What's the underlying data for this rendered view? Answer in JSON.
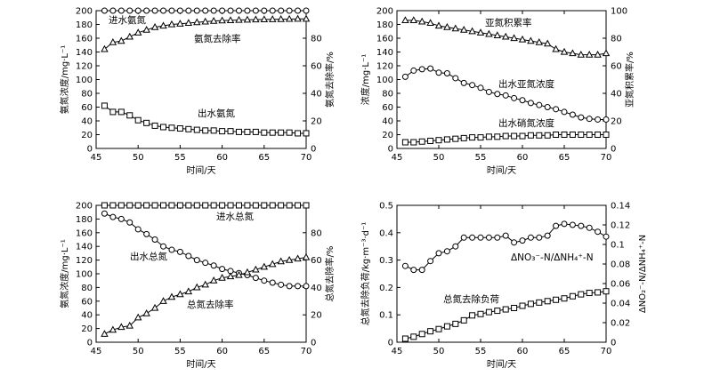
{
  "chart_data": [
    {
      "type": "line",
      "xlabel": "时间/天",
      "ylabel": "氨氮浓度/mg·L⁻¹",
      "y2label": "氨氮去除率/%",
      "xlim": [
        45,
        70
      ],
      "ylim": [
        0,
        200
      ],
      "y2lim": [
        0,
        100
      ],
      "xticks": [
        45,
        50,
        55,
        60,
        65,
        70
      ],
      "yticks": [
        0,
        20,
        40,
        60,
        80,
        100,
        120,
        140,
        160,
        180,
        200
      ],
      "y2ticks": [
        0,
        20,
        40,
        60,
        80
      ],
      "annotations": [
        "进水氨氮",
        "氨氮去除率",
        "出水氨氮"
      ],
      "series": [
        {
          "axis": "left",
          "marker": "circle",
          "x": [
            46,
            47,
            48,
            49,
            50,
            51,
            52,
            53,
            54,
            55,
            56,
            57,
            58,
            59,
            60,
            61,
            62,
            63,
            64,
            65,
            66,
            67,
            68,
            69,
            70
          ],
          "values": [
            200,
            200,
            200,
            200,
            200,
            200,
            200,
            200,
            200,
            200,
            200,
            200,
            200,
            200,
            200,
            200,
            200,
            200,
            200,
            200,
            200,
            200,
            200,
            200,
            200
          ]
        },
        {
          "axis": "right",
          "marker": "triangle",
          "x": [
            46,
            47,
            48,
            49,
            50,
            51,
            52,
            53,
            54,
            55,
            56,
            57,
            58,
            59,
            60,
            61,
            62,
            63,
            64,
            65,
            66,
            67,
            68,
            69,
            70
          ],
          "values": [
            72,
            77,
            78,
            81,
            84,
            86,
            88,
            89,
            90,
            90.5,
            91,
            91.5,
            92,
            92.5,
            92.8,
            93,
            93.2,
            93.4,
            93.5,
            93.6,
            93.7,
            93.8,
            93.9,
            94,
            94
          ]
        },
        {
          "axis": "left",
          "marker": "square",
          "x": [
            46,
            47,
            48,
            49,
            50,
            51,
            52,
            53,
            54,
            55,
            56,
            57,
            58,
            59,
            60,
            61,
            62,
            63,
            64,
            65,
            66,
            67,
            68,
            69,
            70
          ],
          "values": [
            62,
            53,
            53,
            48,
            41,
            37,
            33,
            31,
            30,
            29,
            28,
            27,
            26,
            26,
            25,
            25,
            24,
            24,
            24,
            23,
            23,
            23,
            23,
            22,
            22
          ]
        }
      ]
    },
    {
      "type": "line",
      "xlabel": "时间/天",
      "ylabel": "浓度/mg·L⁻¹",
      "y2label": "亚氮积累率/%",
      "xlim": [
        45,
        70
      ],
      "ylim": [
        0,
        200
      ],
      "y2lim": [
        0,
        100
      ],
      "xticks": [
        45,
        50,
        55,
        60,
        65,
        70
      ],
      "yticks": [
        0,
        20,
        40,
        60,
        80,
        100,
        120,
        140,
        160,
        180,
        200
      ],
      "y2ticks": [
        0,
        20,
        40,
        60,
        80,
        100
      ],
      "annotations": [
        "亚氮积累率",
        "出水亚氮浓度",
        "出水硝氮浓度"
      ],
      "series": [
        {
          "axis": "right",
          "marker": "triangle",
          "x": [
            46,
            47,
            48,
            49,
            50,
            51,
            52,
            53,
            54,
            55,
            56,
            57,
            58,
            59,
            60,
            61,
            62,
            63,
            64,
            65,
            66,
            67,
            68,
            69,
            70
          ],
          "values": [
            93,
            93,
            92,
            91,
            89,
            88,
            87,
            86,
            85,
            84,
            83,
            82,
            81,
            80,
            79,
            78,
            77,
            76,
            72,
            70,
            69,
            68,
            68,
            68,
            69
          ]
        },
        {
          "axis": "left",
          "marker": "circle",
          "x": [
            46,
            47,
            48,
            49,
            50,
            51,
            52,
            53,
            54,
            55,
            56,
            57,
            58,
            59,
            60,
            61,
            62,
            63,
            64,
            65,
            66,
            67,
            68,
            69,
            70
          ],
          "values": [
            104,
            113,
            115,
            116,
            110,
            109,
            102,
            95,
            92,
            88,
            82,
            79,
            77,
            73,
            70,
            66,
            63,
            60,
            57,
            53,
            49,
            45,
            43,
            42,
            42
          ]
        },
        {
          "axis": "left",
          "marker": "square",
          "x": [
            46,
            47,
            48,
            49,
            50,
            51,
            52,
            53,
            54,
            55,
            56,
            57,
            58,
            59,
            60,
            61,
            62,
            63,
            64,
            65,
            66,
            67,
            68,
            69,
            70
          ],
          "values": [
            9,
            9,
            10,
            11,
            12,
            13,
            14,
            15,
            16,
            16,
            17,
            17,
            18,
            18,
            18,
            19,
            19,
            19,
            20,
            20,
            20,
            20,
            20,
            20,
            20
          ]
        }
      ]
    },
    {
      "type": "line",
      "xlabel": "时间/天",
      "ylabel": "氨氮浓度/mg·L⁻¹",
      "y2label": "总氮去除率/%",
      "xlim": [
        45,
        70
      ],
      "ylim": [
        0,
        200
      ],
      "y2lim": [
        0,
        100
      ],
      "xticks": [
        45,
        50,
        55,
        60,
        65,
        70
      ],
      "yticks": [
        0,
        20,
        40,
        60,
        80,
        100,
        120,
        140,
        160,
        180,
        200
      ],
      "y2ticks": [
        0,
        20,
        40,
        60,
        80
      ],
      "annotations": [
        "进水总氮",
        "出水总氮",
        "总氮去除率"
      ],
      "series": [
        {
          "axis": "left",
          "marker": "square",
          "x": [
            46,
            47,
            48,
            49,
            50,
            51,
            52,
            53,
            54,
            55,
            56,
            57,
            58,
            59,
            60,
            61,
            62,
            63,
            64,
            65,
            66,
            67,
            68,
            69,
            70
          ],
          "values": [
            200,
            200,
            200,
            200,
            200,
            200,
            200,
            200,
            200,
            200,
            200,
            200,
            200,
            200,
            200,
            200,
            200,
            200,
            200,
            200,
            200,
            200,
            200,
            200,
            200
          ]
        },
        {
          "axis": "left",
          "marker": "circle",
          "x": [
            46,
            47,
            48,
            49,
            50,
            51,
            52,
            53,
            54,
            55,
            56,
            57,
            58,
            59,
            60,
            61,
            62,
            63,
            64,
            65,
            66,
            67,
            68,
            69,
            70
          ],
          "values": [
            188,
            183,
            180,
            175,
            165,
            158,
            150,
            140,
            135,
            132,
            126,
            120,
            116,
            112,
            107,
            104,
            101,
            98,
            94,
            90,
            87,
            84,
            82,
            82,
            82
          ]
        },
        {
          "axis": "right",
          "marker": "triangle",
          "x": [
            46,
            47,
            48,
            49,
            50,
            51,
            52,
            53,
            54,
            55,
            56,
            57,
            58,
            59,
            60,
            61,
            62,
            63,
            64,
            65,
            66,
            67,
            68,
            69,
            70
          ],
          "values": [
            6,
            9,
            11,
            12,
            18,
            21,
            25,
            30,
            33,
            35,
            37,
            40,
            42,
            45,
            47,
            48,
            49,
            51,
            53,
            55,
            57,
            59,
            60,
            61,
            62
          ]
        }
      ]
    },
    {
      "type": "line",
      "xlabel": "时间/天",
      "ylabel": "总氮去除负荷/kg·m⁻³·d⁻¹",
      "y2label": "ΔNO₂⁻-N/ΔNH₄⁺-N",
      "xlim": [
        45,
        70
      ],
      "ylim": [
        0,
        0.5
      ],
      "y2lim": [
        0,
        0.14
      ],
      "xticks": [
        45,
        50,
        55,
        60,
        65,
        70
      ],
      "yticks": [
        0,
        0.1,
        0.2,
        0.3,
        0.4,
        0.5
      ],
      "y2ticks": [
        0,
        0.02,
        0.04,
        0.06,
        0.08,
        0.1,
        0.12,
        0.14
      ],
      "annotations": [
        "ΔNO₃⁻-N/ΔNH₄⁺-N",
        "总氮去除负荷"
      ],
      "series": [
        {
          "axis": "right",
          "marker": "circle",
          "x": [
            46,
            47,
            48,
            49,
            50,
            51,
            52,
            53,
            54,
            55,
            56,
            57,
            58,
            59,
            60,
            61,
            62,
            63,
            64,
            65,
            66,
            67,
            68,
            69,
            70
          ],
          "values": [
            0.078,
            0.074,
            0.074,
            0.083,
            0.091,
            0.093,
            0.098,
            0.107,
            0.107,
            0.107,
            0.107,
            0.107,
            0.109,
            0.102,
            0.104,
            0.107,
            0.107,
            0.109,
            0.119,
            0.121,
            0.12,
            0.119,
            0.117,
            0.113,
            0.108
          ]
        },
        {
          "axis": "left",
          "marker": "square",
          "x": [
            46,
            47,
            48,
            49,
            50,
            51,
            52,
            53,
            54,
            55,
            56,
            57,
            58,
            59,
            60,
            61,
            62,
            63,
            64,
            65,
            66,
            67,
            68,
            69,
            70
          ],
          "values": [
            0.013,
            0.02,
            0.03,
            0.04,
            0.048,
            0.058,
            0.067,
            0.08,
            0.098,
            0.103,
            0.11,
            0.115,
            0.12,
            0.125,
            0.133,
            0.14,
            0.145,
            0.15,
            0.155,
            0.16,
            0.168,
            0.175,
            0.18,
            0.182,
            0.186
          ]
        }
      ]
    }
  ]
}
